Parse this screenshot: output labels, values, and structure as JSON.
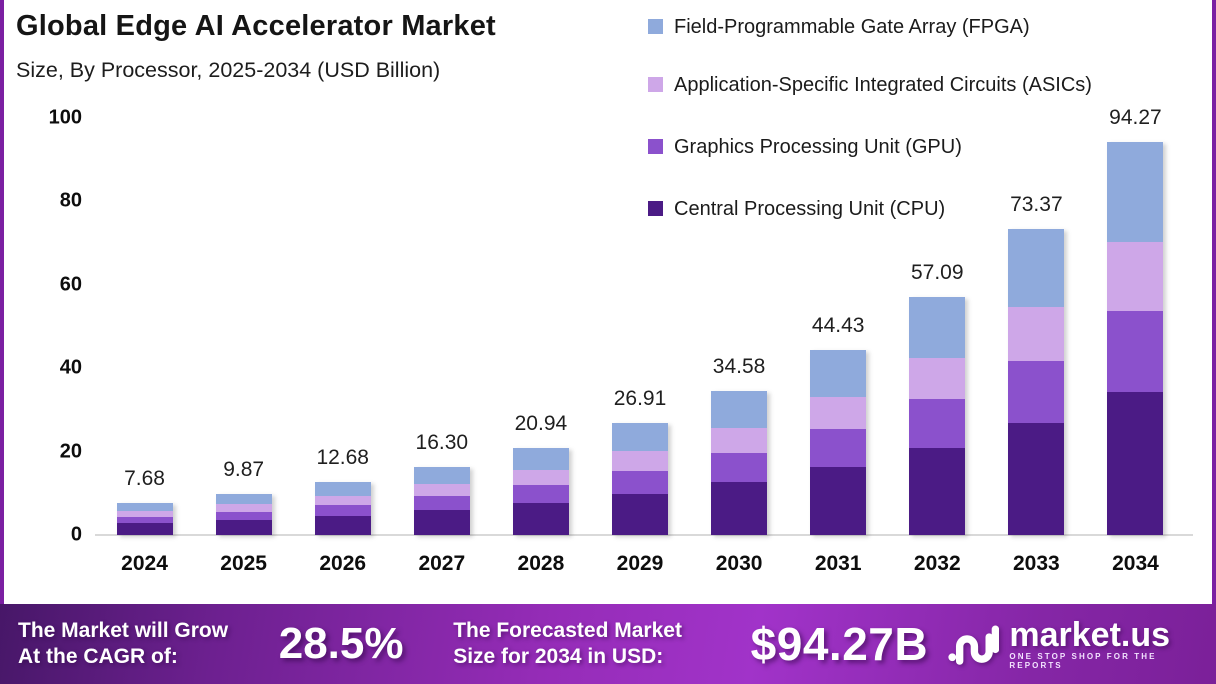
{
  "frame": {
    "background": "#FFFFFF",
    "side_border_color": "#7B1FA2"
  },
  "header": {
    "title": "Global Edge AI Accelerator Market",
    "subtitle": "Size, By Processor, 2025-2034 (USD Billion)"
  },
  "legend": {
    "position": "top-right",
    "items": [
      {
        "label": "Field-Programmable Gate Array (FPGA)",
        "color": "#8FAADC"
      },
      {
        "label": "Application-Specific Integrated Circuits (ASICs)",
        "color": "#CEA7E8"
      },
      {
        "label": "Graphics Processing Unit (GPU)",
        "color": "#8B51CC"
      },
      {
        "label": "Central Processing Unit (CPU)",
        "color": "#4B1B85"
      }
    ]
  },
  "chart_data": {
    "type": "bar",
    "stacked": true,
    "title": "Global Edge AI Accelerator Market Size, By Processor, 2025-2034 (USD Billion)",
    "categories": [
      "2024",
      "2025",
      "2026",
      "2027",
      "2028",
      "2029",
      "2030",
      "2031",
      "2032",
      "2033",
      "2034"
    ],
    "totals": [
      7.68,
      9.87,
      12.68,
      16.3,
      20.94,
      26.91,
      34.58,
      44.43,
      57.09,
      73.37,
      94.27
    ],
    "total_labels": [
      "7.68",
      "9.87",
      "12.68",
      "16.30",
      "20.94",
      "26.91",
      "34.58",
      "44.43",
      "57.09",
      "73.37",
      "94.27"
    ],
    "series": [
      {
        "name": "Central Processing Unit (CPU)",
        "color": "#4B1B85",
        "values": [
          2.8,
          3.6,
          4.63,
          5.95,
          7.64,
          9.82,
          12.62,
          16.22,
          20.84,
          26.78,
          34.41
        ]
      },
      {
        "name": "Graphics Processing Unit (GPU)",
        "color": "#8B51CC",
        "values": [
          1.57,
          2.02,
          2.6,
          3.34,
          4.29,
          5.52,
          7.09,
          9.11,
          11.7,
          15.04,
          19.33
        ]
      },
      {
        "name": "Application-Specific Integrated Circuits (ASICs)",
        "color": "#CEA7E8",
        "values": [
          1.34,
          1.73,
          2.22,
          2.85,
          3.66,
          4.71,
          6.05,
          7.78,
          9.99,
          12.84,
          16.5
        ]
      },
      {
        "name": "Field-Programmable Gate Array (FPGA)",
        "color": "#8FAADC",
        "values": [
          1.97,
          2.52,
          3.23,
          4.16,
          5.35,
          6.86,
          8.82,
          11.32,
          14.56,
          18.71,
          24.03
        ]
      }
    ],
    "xlabel": "",
    "ylabel": "",
    "ylim": [
      0,
      100
    ],
    "yticks": [
      100,
      80,
      60,
      40,
      20,
      0
    ],
    "grid": false,
    "legend_position": "top-right"
  },
  "banner": {
    "cagr": {
      "label_line1": "The Market will Grow",
      "label_line2": "At the CAGR of:",
      "value": "28.5%"
    },
    "forecast": {
      "label_line1": "The Forecasted Market",
      "label_line2": "Size for 2034 in USD:",
      "value": "$94.27B"
    },
    "logo": {
      "name": "market.us",
      "tagline": "ONE STOP SHOP FOR THE REPORTS"
    }
  }
}
